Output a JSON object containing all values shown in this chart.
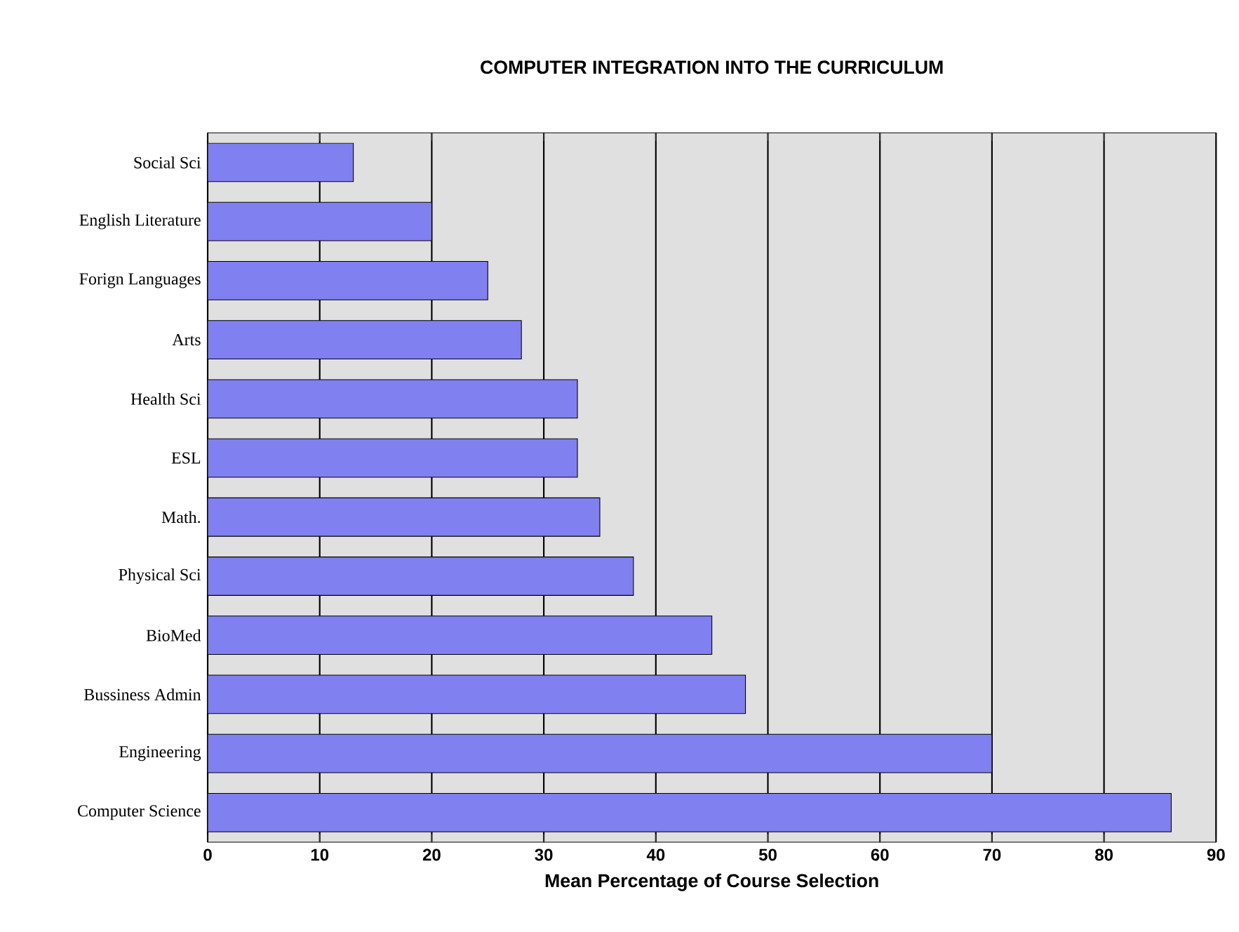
{
  "chart_data": {
    "type": "bar",
    "orientation": "horizontal",
    "title": "COMPUTER INTEGRATION INTO THE CURRICULUM",
    "xlabel": "Mean Percentage of Course Selection",
    "categories": [
      "Social Sci",
      "English Literature",
      "Forign Languages",
      "Arts",
      "Health Sci",
      "ESL",
      "Math.",
      "Physical Sci",
      "BioMed",
      "Bussiness Admin",
      "Engineering",
      "Computer Science"
    ],
    "values": [
      13,
      20,
      25,
      28,
      33,
      33,
      35,
      38,
      45,
      48,
      70,
      86
    ],
    "color": "#8080f0",
    "xlim": [
      0,
      90
    ],
    "xticks": [
      0,
      10,
      20,
      30,
      40,
      50,
      60,
      70,
      80,
      90
    ],
    "grid": "x"
  }
}
